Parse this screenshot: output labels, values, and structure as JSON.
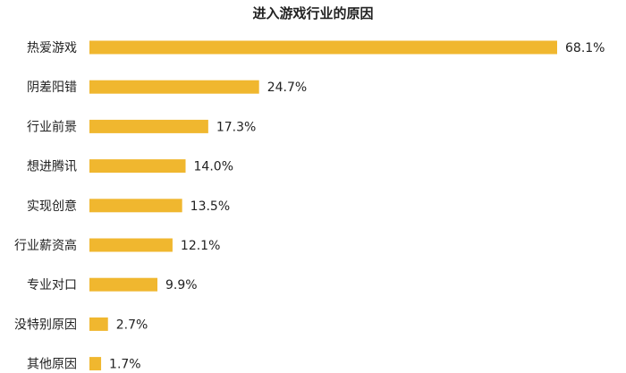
{
  "chart_data": {
    "type": "bar",
    "orientation": "horizontal",
    "title": "进入游戏行业的原因",
    "categories": [
      "热爱游戏",
      "阴差阳错",
      "行业前景",
      "想进腾讯",
      "实现创意",
      "行业薪资高",
      "专业对口",
      "没特别原因",
      "其他原因"
    ],
    "values": [
      68.1,
      24.7,
      17.3,
      14.0,
      13.5,
      12.1,
      9.9,
      2.7,
      1.7
    ],
    "value_labels": [
      "68.1%",
      "24.7%",
      "17.3%",
      "14.0%",
      "13.5%",
      "12.1%",
      "9.9%",
      "2.7%",
      "1.7%"
    ],
    "xlabel": "",
    "ylabel": "",
    "xlim": [
      0,
      68.1
    ],
    "grid": false,
    "bar_color": "#f0b72f"
  }
}
